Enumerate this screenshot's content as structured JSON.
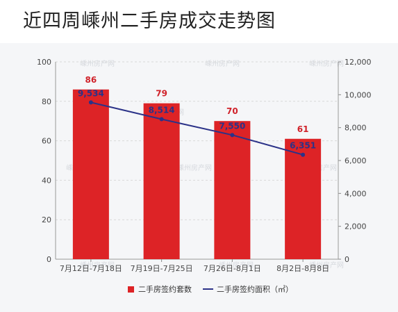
{
  "title": "近四周嵊州二手房成交走势图",
  "watermark": "嵊州房产网",
  "colors": {
    "bar": "#dd2326",
    "line": "#2b3288",
    "bar_label": "#d0222a",
    "line_label": "#2b3288",
    "axis_text": "#444444",
    "grid": "#d8d8d8"
  },
  "chart_data": {
    "type": "bar",
    "categories": [
      "7月12日-7月18日",
      "7月19日-7月25日",
      "7月26日-8月1日",
      "8月2日-8月8日"
    ],
    "series": [
      {
        "name": "二手房签约套数",
        "type": "bar",
        "axis": "left",
        "values": [
          86,
          79,
          70,
          61
        ],
        "labels": [
          "86",
          "79",
          "70",
          "61"
        ]
      },
      {
        "name": "二手房签约面积（㎡）",
        "type": "line",
        "axis": "right",
        "values": [
          9534,
          8514,
          7550,
          6351
        ],
        "labels": [
          "9,534",
          "8,514",
          "7,550",
          "6,351"
        ]
      }
    ],
    "y_left": {
      "min": 0,
      "max": 100,
      "ticks": [
        0,
        20,
        40,
        60,
        80,
        100
      ],
      "tick_labels": [
        "0",
        "20",
        "40",
        "60",
        "80",
        "100"
      ]
    },
    "y_right": {
      "min": 0,
      "max": 12000,
      "ticks": [
        0,
        2000,
        4000,
        6000,
        8000,
        10000,
        12000
      ],
      "tick_labels": [
        "0",
        "2,000",
        "4,000",
        "6,000",
        "8,000",
        "10,000",
        "12,000"
      ]
    },
    "grid": true,
    "legend_position": "bottom-center"
  }
}
